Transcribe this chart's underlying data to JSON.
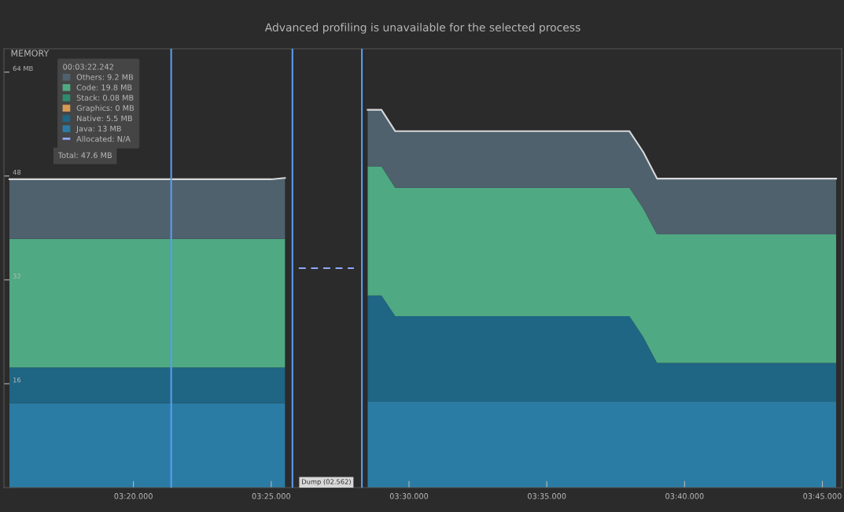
{
  "chart_data": {
    "type": "area",
    "stacked": true,
    "title": "Advanced profiling is unavailable for the selected process",
    "ylabel": "MEMORY",
    "legend_title": "00:03:22.242",
    "categories": [
      null,
      null,
      null,
      null,
      null,
      null,
      null,
      null,
      null,
      "03:20.000",
      null,
      null,
      null,
      null,
      null,
      null,
      null,
      null,
      null,
      "03:25.000",
      null,
      null,
      null,
      null,
      null,
      null,
      null,
      null,
      null,
      "03:30.000",
      null,
      null,
      null,
      null,
      null,
      null,
      null,
      null,
      null,
      "03:35.000",
      null,
      null,
      null,
      null,
      null,
      null,
      null,
      null,
      null,
      "03:40.000",
      null,
      null,
      null,
      null,
      null,
      null,
      null,
      null,
      null,
      "03:45.000",
      null
    ],
    "series": [
      {
        "name": "Java: 13 MB",
        "color": "#2a7ca4",
        "values": [
          13.0,
          13.0,
          13.0,
          13.0,
          13.0,
          13.0,
          13.0,
          13.0,
          13.0,
          13.0,
          13.0,
          13.0,
          13.0,
          13.0,
          13.0,
          13.0,
          13.0,
          13.0,
          13.0,
          13.0,
          13.0,
          null,
          null,
          null,
          null,
          null,
          13.3,
          13.3,
          13.3,
          13.3,
          13.3,
          13.3,
          13.3,
          13.3,
          13.3,
          13.3,
          13.3,
          13.3,
          13.3,
          13.3,
          13.3,
          13.3,
          13.3,
          13.3,
          13.3,
          13.3,
          13.3,
          13.3,
          13.3,
          13.3,
          13.3,
          13.3,
          13.3,
          13.3,
          13.3,
          13.3,
          13.3,
          13.3,
          13.3,
          13.3,
          13.3
        ]
      },
      {
        "name": "Native: 5.5 MB",
        "color": "#1f6584",
        "values": [
          5.5,
          5.5,
          5.5,
          5.5,
          5.5,
          5.5,
          5.5,
          5.5,
          5.5,
          5.5,
          5.5,
          5.5,
          5.5,
          5.5,
          5.5,
          5.5,
          5.5,
          5.5,
          5.5,
          5.5,
          5.5,
          null,
          null,
          null,
          null,
          null,
          16.3,
          16.3,
          13.1,
          13.1,
          13.1,
          13.1,
          13.1,
          13.1,
          13.1,
          13.1,
          13.1,
          13.1,
          13.1,
          13.1,
          13.1,
          13.1,
          13.1,
          13.1,
          13.1,
          13.1,
          9.9,
          5.9,
          5.9,
          5.9,
          5.9,
          5.9,
          5.9,
          5.9,
          5.9,
          5.9,
          5.9,
          5.9,
          5.9,
          5.9,
          5.9
        ]
      },
      {
        "name": "Graphics: 0 MB",
        "color": "#d69a56",
        "values": [
          null,
          null,
          null,
          null,
          null,
          null,
          null,
          null,
          null,
          null,
          null,
          null,
          null,
          null,
          null,
          null,
          null,
          null,
          null,
          null,
          null,
          null,
          null,
          null,
          null,
          null,
          null,
          null,
          null,
          null,
          null,
          null,
          null,
          null,
          null,
          null,
          null,
          null,
          null,
          null,
          null,
          null,
          null,
          null,
          null,
          null,
          null,
          null,
          null,
          null,
          null,
          null,
          null,
          null,
          null,
          null,
          null,
          null,
          null,
          null,
          null
        ]
      },
      {
        "name": "Stack: 0.08 MB",
        "color": "#2e8b6e",
        "values": [
          null,
          null,
          null,
          null,
          null,
          null,
          null,
          null,
          null,
          null,
          null,
          null,
          null,
          null,
          null,
          null,
          null,
          null,
          null,
          null,
          null,
          null,
          null,
          null,
          null,
          null,
          null,
          null,
          null,
          null,
          null,
          null,
          null,
          null,
          null,
          null,
          null,
          null,
          null,
          null,
          null,
          null,
          null,
          null,
          null,
          null,
          null,
          null,
          null,
          null,
          null,
          null,
          null,
          null,
          null,
          null,
          null,
          null,
          null,
          null,
          null
        ]
      },
      {
        "name": "Code: 19.8 MB",
        "color": "#4fa982",
        "values": [
          19.8,
          19.8,
          19.8,
          19.8,
          19.8,
          19.8,
          19.8,
          19.8,
          19.8,
          19.8,
          19.8,
          19.8,
          19.8,
          19.8,
          19.8,
          19.8,
          19.8,
          19.8,
          19.8,
          19.8,
          19.8,
          null,
          null,
          null,
          null,
          null,
          19.9,
          19.9,
          19.8,
          19.8,
          19.8,
          19.8,
          19.8,
          19.8,
          19.8,
          19.8,
          19.8,
          19.8,
          19.8,
          19.8,
          19.8,
          19.8,
          19.8,
          19.8,
          19.8,
          19.8,
          19.8,
          19.8,
          19.8,
          19.8,
          19.8,
          19.8,
          19.8,
          19.8,
          19.8,
          19.8,
          19.8,
          19.8,
          19.8,
          19.8,
          19.8
        ]
      },
      {
        "name": "Others: 9.2 MB",
        "color": "#4e616d",
        "values": [
          9.2,
          9.2,
          9.2,
          9.2,
          9.2,
          9.2,
          9.2,
          9.2,
          9.2,
          9.2,
          9.2,
          9.2,
          9.2,
          9.2,
          9.2,
          9.2,
          9.2,
          9.2,
          9.2,
          9.2,
          9.4,
          null,
          null,
          null,
          null,
          null,
          8.7,
          8.7,
          8.7,
          8.7,
          8.7,
          8.7,
          8.7,
          8.7,
          8.7,
          8.7,
          8.7,
          8.7,
          8.7,
          8.7,
          8.7,
          8.7,
          8.7,
          8.7,
          8.7,
          8.7,
          8.7,
          8.6,
          8.6,
          8.6,
          8.6,
          8.6,
          8.6,
          8.6,
          8.6,
          8.6,
          8.6,
          8.6,
          8.6,
          8.6,
          8.6
        ]
      },
      {
        "name": "Allocated: N/A",
        "type": "line",
        "line_style": "dashed",
        "color": "#8fa8ff",
        "values": [
          null,
          null,
          null,
          null,
          null,
          null,
          null,
          null,
          null,
          null,
          null,
          null,
          null,
          null,
          null,
          null,
          null,
          null,
          null,
          null,
          null,
          33.8,
          33.8,
          33.8,
          33.8,
          33.8,
          null,
          null,
          null,
          null,
          null,
          null,
          null,
          null,
          null,
          null,
          null,
          null,
          null,
          null,
          null,
          null,
          null,
          null,
          null,
          null,
          null,
          null,
          null,
          null,
          null,
          null,
          null,
          null,
          null,
          null,
          null,
          null,
          null,
          null,
          null
        ]
      }
    ],
    "ylim": [
      0,
      67.6
    ],
    "yticks": [
      {
        "value": 16,
        "label": "16"
      },
      {
        "value": 32,
        "label": "32"
      },
      {
        "value": 48,
        "label": "48"
      },
      {
        "value": 64,
        "label": "64 MB"
      }
    ],
    "annotations": [
      "Total: 47.6 MB",
      "Dump (02.562)"
    ],
    "legend": "top left"
  }
}
